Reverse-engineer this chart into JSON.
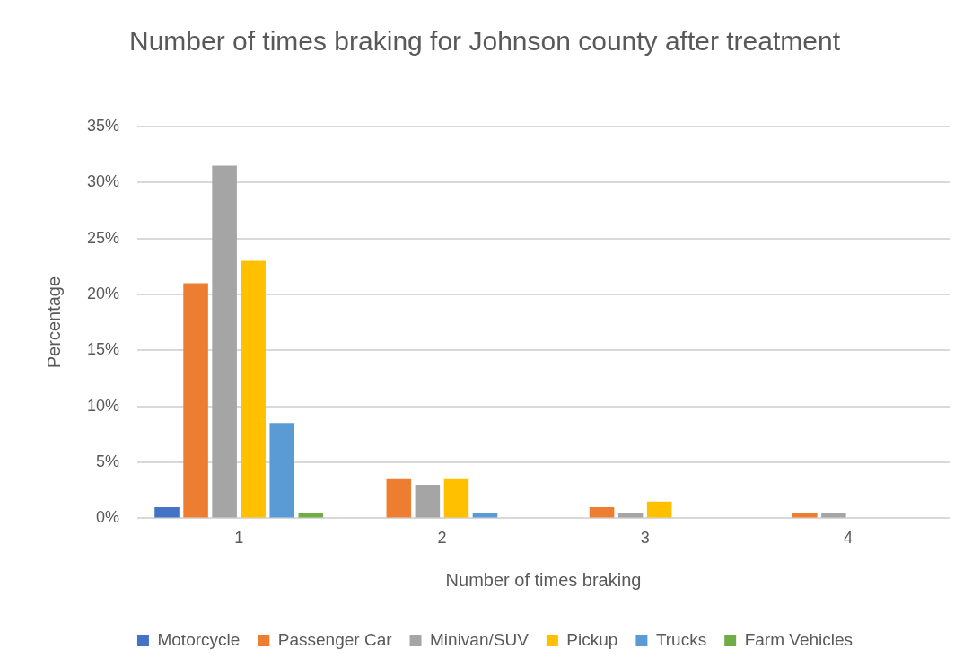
{
  "chart_data": {
    "type": "bar",
    "title": "Number of times braking for Johnson county after treatment",
    "xlabel": "Number of times braking",
    "ylabel": "Percentage",
    "categories": [
      "1",
      "2",
      "3",
      "4"
    ],
    "series": [
      {
        "name": "Motorcycle",
        "color": "#4472c4",
        "values": [
          1,
          0,
          0,
          0
        ]
      },
      {
        "name": "Passenger Car",
        "color": "#ed7d31",
        "values": [
          21,
          3.5,
          1,
          0.5
        ]
      },
      {
        "name": "Minivan/SUV",
        "color": "#a5a5a5",
        "values": [
          31.5,
          3,
          0.5,
          0.5
        ]
      },
      {
        "name": "Pickup",
        "color": "#ffc000",
        "values": [
          23,
          3.5,
          1.5,
          0
        ]
      },
      {
        "name": "Trucks",
        "color": "#5b9bd5",
        "values": [
          8.5,
          0.5,
          0,
          0
        ]
      },
      {
        "name": "Farm Vehicles",
        "color": "#70ad47",
        "values": [
          0.5,
          0,
          0,
          0
        ]
      }
    ],
    "ylim": [
      0,
      35
    ],
    "yticks": [
      {
        "value": 0,
        "label": "0%"
      },
      {
        "value": 5,
        "label": "5%"
      },
      {
        "value": 10,
        "label": "10%"
      },
      {
        "value": 15,
        "label": "15%"
      },
      {
        "value": 20,
        "label": "20%"
      },
      {
        "value": 25,
        "label": "25%"
      },
      {
        "value": 30,
        "label": "30%"
      },
      {
        "value": 35,
        "label": "35%"
      }
    ],
    "grid": "y",
    "legend": "bottom"
  }
}
